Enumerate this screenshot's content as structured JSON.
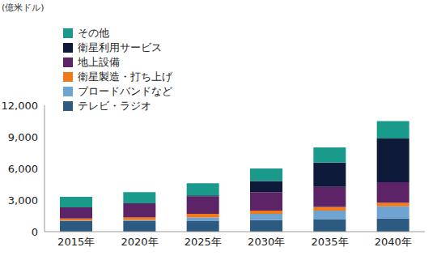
{
  "chart_data": {
    "type": "bar",
    "stacked": true,
    "y_label": "(億米ドル)",
    "categories": [
      "2015年",
      "2020年",
      "2025年",
      "2030年",
      "2035年",
      "2040年"
    ],
    "series": [
      {
        "name": "テレビ・ラジオ",
        "color": "#2c5a80",
        "values": [
          1000,
          1000,
          1000,
          1100,
          1200,
          1250
        ]
      },
      {
        "name": "ブロードバンドなど",
        "color": "#6fa3d2",
        "values": [
          50,
          100,
          350,
          600,
          800,
          1150
        ]
      },
      {
        "name": "衛星製造・打ち上げ",
        "color": "#f07a1a",
        "values": [
          200,
          250,
          350,
          300,
          350,
          350
        ]
      },
      {
        "name": "地上設備",
        "color": "#5c2466",
        "values": [
          1050,
          1350,
          1650,
          1750,
          1900,
          1950
        ]
      },
      {
        "name": "衛星利用サービス",
        "color": "#0d1a3a",
        "values": [
          0,
          0,
          100,
          1050,
          2300,
          4150
        ]
      },
      {
        "name": "その他",
        "color": "#1a9a8a",
        "values": [
          1000,
          1050,
          1150,
          1200,
          1450,
          1650
        ]
      }
    ],
    "ylim": [
      0,
      12000
    ],
    "yticks": [
      {
        "value": 0,
        "label": "0"
      },
      {
        "value": 3000,
        "label": "3,000"
      },
      {
        "value": 6000,
        "label": "6,000"
      },
      {
        "value": 9000,
        "label": "9,000"
      },
      {
        "value": 12000,
        "label": "12,000"
      }
    ],
    "grid": false,
    "legend": "upper left"
  }
}
